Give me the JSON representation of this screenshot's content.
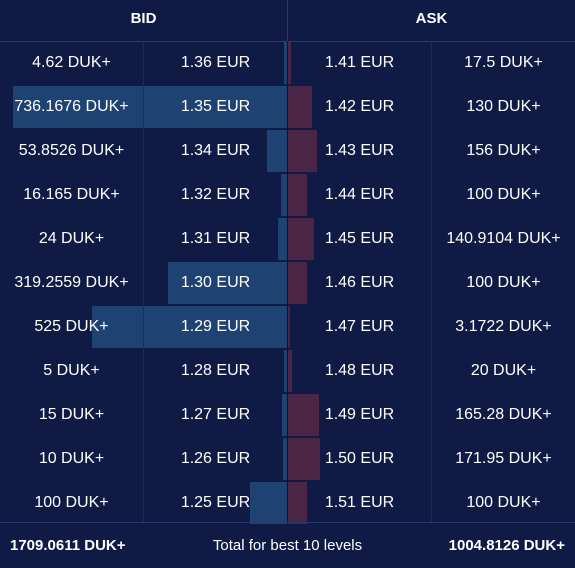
{
  "header": {
    "bid_label": "BID",
    "ask_label": "ASK"
  },
  "colors": {
    "background": "#0f1b45",
    "bid_bar": "#1e4272",
    "ask_bar": "#4a2545"
  },
  "rows": [
    {
      "bid_amount": "4.62 DUK+",
      "bid_price": "1.36 EUR",
      "ask_price": "1.41 EUR",
      "ask_amount": "17.5 DUK+",
      "bid_depth": 0.007,
      "ask_depth": 0.012
    },
    {
      "bid_amount": "736.1676 DUK+",
      "bid_price": "1.35 EUR",
      "ask_price": "1.42 EUR",
      "ask_amount": "130 DUK+",
      "bid_depth": 0.955,
      "ask_depth": 0.085
    },
    {
      "bid_amount": "53.8526 DUK+",
      "bid_price": "1.34 EUR",
      "ask_price": "1.43 EUR",
      "ask_amount": "156 DUK+",
      "bid_depth": 0.07,
      "ask_depth": 0.102
    },
    {
      "bid_amount": "16.165 DUK+",
      "bid_price": "1.32 EUR",
      "ask_price": "1.44 EUR",
      "ask_amount": "100 DUK+",
      "bid_depth": 0.021,
      "ask_depth": 0.065
    },
    {
      "bid_amount": "24 DUK+",
      "bid_price": "1.31 EUR",
      "ask_price": "1.45 EUR",
      "ask_amount": "140.9104 DUK+",
      "bid_depth": 0.031,
      "ask_depth": 0.092
    },
    {
      "bid_amount": "319.2559 DUK+",
      "bid_price": "1.30 EUR",
      "ask_price": "1.46 EUR",
      "ask_amount": "100 DUK+",
      "bid_depth": 0.414,
      "ask_depth": 0.065
    },
    {
      "bid_amount": "525 DUK+",
      "bid_price": "1.29 EUR",
      "ask_price": "1.47 EUR",
      "ask_amount": "3.1722 DUK+",
      "bid_depth": 0.681,
      "ask_depth": 0.002
    },
    {
      "bid_amount": "5 DUK+",
      "bid_price": "1.28 EUR",
      "ask_price": "1.48 EUR",
      "ask_amount": "20 DUK+",
      "bid_depth": 0.006,
      "ask_depth": 0.013
    },
    {
      "bid_amount": "15 DUK+",
      "bid_price": "1.27 EUR",
      "ask_price": "1.49 EUR",
      "ask_amount": "165.28 DUK+",
      "bid_depth": 0.019,
      "ask_depth": 0.108
    },
    {
      "bid_amount": "10 DUK+",
      "bid_price": "1.26 EUR",
      "ask_price": "1.50 EUR",
      "ask_amount": "171.95 DUK+",
      "bid_depth": 0.013,
      "ask_depth": 0.112
    },
    {
      "bid_amount": "100 DUK+",
      "bid_price": "1.25 EUR",
      "ask_price": "1.51 EUR",
      "ask_amount": "100 DUK+",
      "bid_depth": 0.13,
      "ask_depth": 0.065
    }
  ],
  "footer": {
    "total_bid": "1709.0611 DUK+",
    "total_label": "Total for best 10 levels",
    "total_ask": "1004.8126 DUK+"
  }
}
